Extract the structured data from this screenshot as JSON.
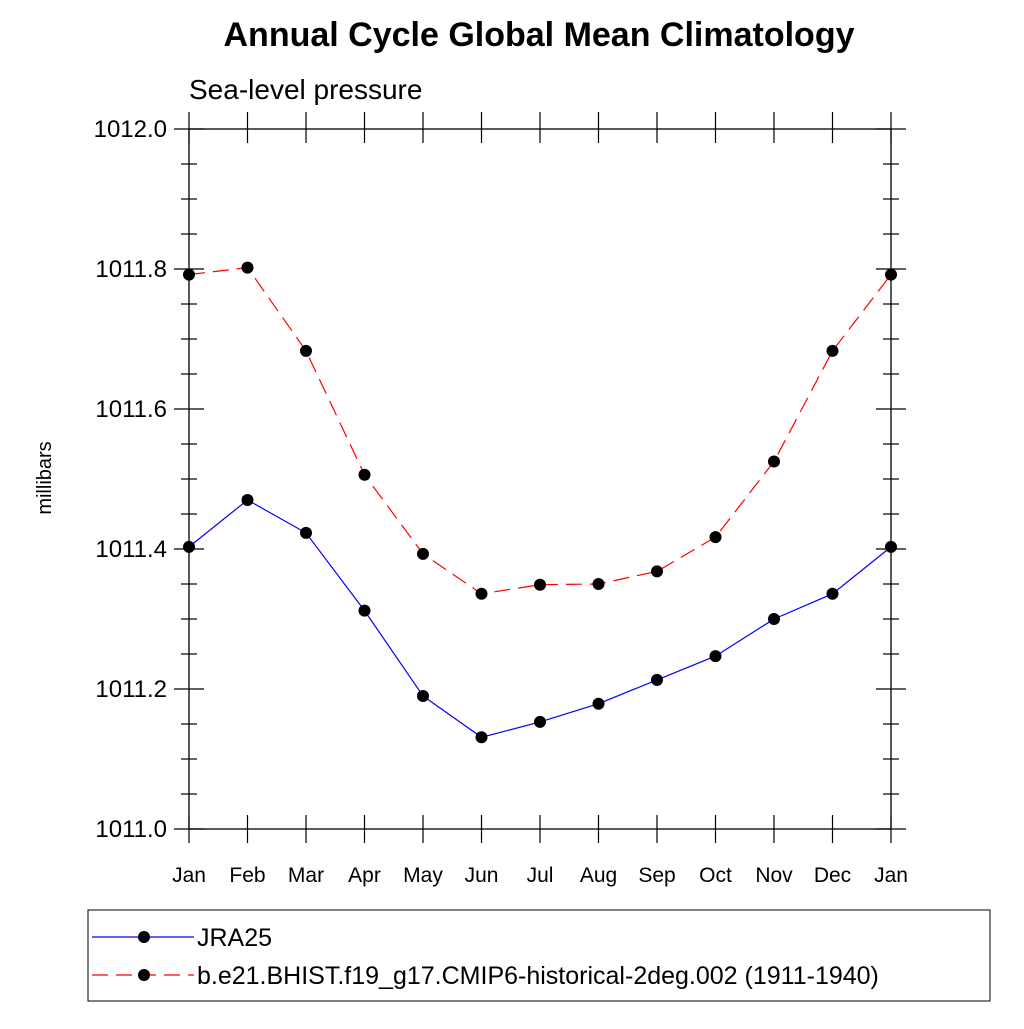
{
  "chart_data": {
    "type": "line",
    "title": "Annual Cycle Global Mean Climatology",
    "subtitle": "Sea-level pressure",
    "xlabel": "",
    "ylabel": "millibars",
    "categories": [
      "Jan",
      "Feb",
      "Mar",
      "Apr",
      "May",
      "Jun",
      "Jul",
      "Aug",
      "Sep",
      "Oct",
      "Nov",
      "Dec",
      "Jan"
    ],
    "ylim": [
      1011.0,
      1012.0
    ],
    "y_ticks": [
      "1011.0",
      "1011.2",
      "1011.4",
      "1011.6",
      "1011.8",
      "1012.0"
    ],
    "y_tick_values": [
      1011.0,
      1011.2,
      1011.4,
      1011.6,
      1011.8,
      1012.0
    ],
    "grid": false,
    "legend_position": "bottom",
    "series": [
      {
        "name": "JRA25",
        "color": "#0000ff",
        "dash": "solid",
        "marker": "filled-circle",
        "values": [
          1011.403,
          1011.47,
          1011.423,
          1011.312,
          1011.19,
          1011.131,
          1011.153,
          1011.179,
          1011.213,
          1011.247,
          1011.3,
          1011.336,
          1011.403
        ]
      },
      {
        "name": "b.e21.BHIST.f19_g17.CMIP6-historical-2deg.002 (1911-1940)",
        "color": "#ff0000",
        "dash": "dashed",
        "marker": "filled-circle",
        "values": [
          1011.792,
          1011.802,
          1011.683,
          1011.506,
          1011.393,
          1011.336,
          1011.349,
          1011.35,
          1011.368,
          1011.417,
          1011.525,
          1011.683,
          1011.792
        ]
      }
    ]
  }
}
